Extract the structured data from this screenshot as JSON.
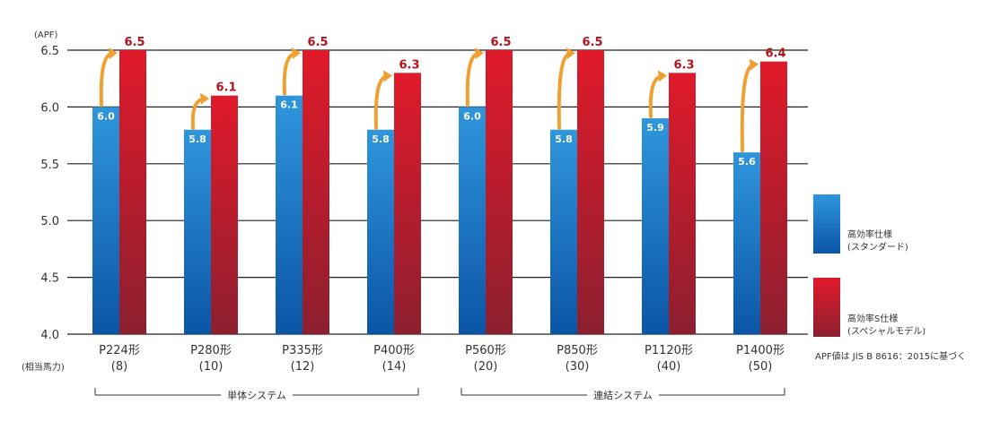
{
  "chart_data": {
    "type": "bar",
    "ylabel": "(APF)",
    "ylim": [
      4.0,
      6.5
    ],
    "yticks": [
      "4.0",
      "4.5",
      "5.0",
      "5.5",
      "6.0",
      "6.5"
    ],
    "categories": [
      "P224形",
      "P280形",
      "P335形",
      "P400形",
      "P560形",
      "P850形",
      "P1120形",
      "P1400形"
    ],
    "sublabels": [
      "(8)",
      "(10)",
      "(12)",
      "(14)",
      "(20)",
      "(30)",
      "(40)",
      "(50)"
    ],
    "sublabel_caption": "(相当馬力)",
    "series": [
      {
        "name": "高効率仕様 (スタンダード)",
        "name_line1": "高効率仕様",
        "name_line2": "(スタンダード)",
        "values": [
          6.0,
          5.8,
          6.1,
          5.8,
          6.0,
          5.8,
          5.9,
          5.6
        ]
      },
      {
        "name": "高効率S仕様 (スペシャルモデル)",
        "name_line1": "高効率S仕様",
        "name_line2": "(スペシャルモデル)",
        "values": [
          6.5,
          6.1,
          6.5,
          6.3,
          6.5,
          6.5,
          6.3,
          6.4
        ]
      }
    ],
    "groups": [
      {
        "label": "単体システム",
        "from": 0,
        "to": 3
      },
      {
        "label": "連結システム",
        "from": 4,
        "to": 7
      }
    ],
    "note": "APF値は JIS B 8616：2015に基づく",
    "legend_position": "right",
    "grid": true
  },
  "colors": {
    "standard_top": "#2f96dc",
    "standard_bottom": "#0b55a6",
    "special_top": "#e01a2a",
    "special_bottom": "#8c1f2f",
    "arrow": "#f0a030"
  }
}
